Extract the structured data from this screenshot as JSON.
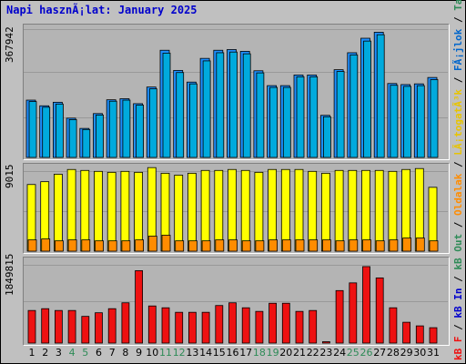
{
  "title": "Napi hasznÃ¡lat: January 2025",
  "colors": {
    "pages": "#00aadd",
    "hits": "#1e90ff",
    "files": "#ffff00",
    "visits": "#ff8c00",
    "kb": "#ee1111",
    "weekend": "#2e8b57",
    "weekday": "#000000"
  },
  "legend": {
    "kb_f": "kB F",
    "sep1": " / ",
    "kb_in": "kB In",
    "sep2": " / ",
    "kb_out": "kB Out",
    "sep3": " / ",
    "oldalak": "Oldalak",
    "sep4": " / ",
    "latogatok": "LÃ¡togatÃ³k",
    "sep5": " / ",
    "fajlok": "FÃ¡jlok",
    "sep6": " / ",
    "talalatok": "TalÃ¡latok"
  },
  "chart_data": [
    {
      "type": "bar",
      "title": "Napi hasznÃ¡lat: January 2025",
      "ymax_label": "367942",
      "ylim": [
        0,
        367942
      ],
      "categories": [
        "1",
        "2",
        "3",
        "4",
        "5",
        "6",
        "7",
        "8",
        "9",
        "10",
        "11",
        "12",
        "13",
        "14",
        "15",
        "16",
        "17",
        "18",
        "19",
        "20",
        "21",
        "22",
        "23",
        "24",
        "25",
        "26",
        "27",
        "28",
        "29",
        "30",
        "31"
      ],
      "weekend_days": [
        4,
        5,
        11,
        12,
        18,
        19,
        25,
        26
      ],
      "series": [
        {
          "name": "TalÃ¡latok",
          "values": [
            162000,
            146000,
            156000,
            111000,
            82000,
            124000,
            163000,
            166000,
            152000,
            199000,
            303000,
            246000,
            213000,
            280000,
            303000,
            305000,
            300000,
            245000,
            203000,
            203000,
            233000,
            233000,
            119000,
            248000,
            296000,
            337000,
            354000,
            209000,
            206000,
            208000,
            226000
          ]
        },
        {
          "name": "Oldalak",
          "values": [
            158000,
            142000,
            151000,
            107000,
            79000,
            120000,
            159000,
            162000,
            148000,
            194000,
            295000,
            240000,
            208000,
            273000,
            296000,
            298000,
            293000,
            239000,
            198000,
            198000,
            228000,
            228000,
            115000,
            243000,
            290000,
            329000,
            347000,
            204000,
            201000,
            203000,
            220000
          ]
        }
      ]
    },
    {
      "type": "bar",
      "ymax_label": "9015",
      "ylim": [
        0,
        9015
      ],
      "categories": [
        "1",
        "2",
        "3",
        "4",
        "5",
        "6",
        "7",
        "8",
        "9",
        "10",
        "11",
        "12",
        "13",
        "14",
        "15",
        "16",
        "17",
        "18",
        "19",
        "20",
        "21",
        "22",
        "23",
        "24",
        "25",
        "26",
        "27",
        "28",
        "29",
        "30",
        "31"
      ],
      "series": [
        {
          "name": "FÃ¡jlok",
          "values": [
            7100,
            7400,
            8200,
            8700,
            8600,
            8500,
            8400,
            8500,
            8400,
            8900,
            8300,
            8100,
            8300,
            8600,
            8600,
            8700,
            8600,
            8400,
            8700,
            8700,
            8700,
            8500,
            8300,
            8600,
            8600,
            8600,
            8600,
            8500,
            8700,
            8800,
            6800
          ]
        },
        {
          "name": "LÃ¡togatÃ³k",
          "values": [
            1200,
            1300,
            1100,
            1200,
            1200,
            1100,
            1100,
            1100,
            1200,
            1600,
            1700,
            1100,
            1100,
            1100,
            1200,
            1200,
            1100,
            1100,
            1200,
            1200,
            1200,
            1200,
            1200,
            1100,
            1200,
            1200,
            1100,
            1200,
            1400,
            1400,
            1100
          ]
        }
      ]
    },
    {
      "type": "bar",
      "ymax_label": "1849815",
      "ylim": [
        0,
        1849815
      ],
      "categories": [
        "1",
        "2",
        "3",
        "4",
        "5",
        "6",
        "7",
        "8",
        "9",
        "10",
        "11",
        "12",
        "13",
        "14",
        "15",
        "16",
        "17",
        "18",
        "19",
        "20",
        "21",
        "22",
        "23",
        "24",
        "25",
        "26",
        "27",
        "28",
        "29",
        "30",
        "31"
      ],
      "series": [
        {
          "name": "kB F",
          "values": [
            720000,
            760000,
            720000,
            720000,
            590000,
            670000,
            760000,
            890000,
            1600000,
            820000,
            780000,
            680000,
            680000,
            680000,
            830000,
            890000,
            780000,
            700000,
            880000,
            880000,
            700000,
            720000,
            30000,
            1160000,
            1330000,
            1690000,
            1440000,
            780000,
            460000,
            380000,
            340000
          ]
        }
      ]
    }
  ]
}
